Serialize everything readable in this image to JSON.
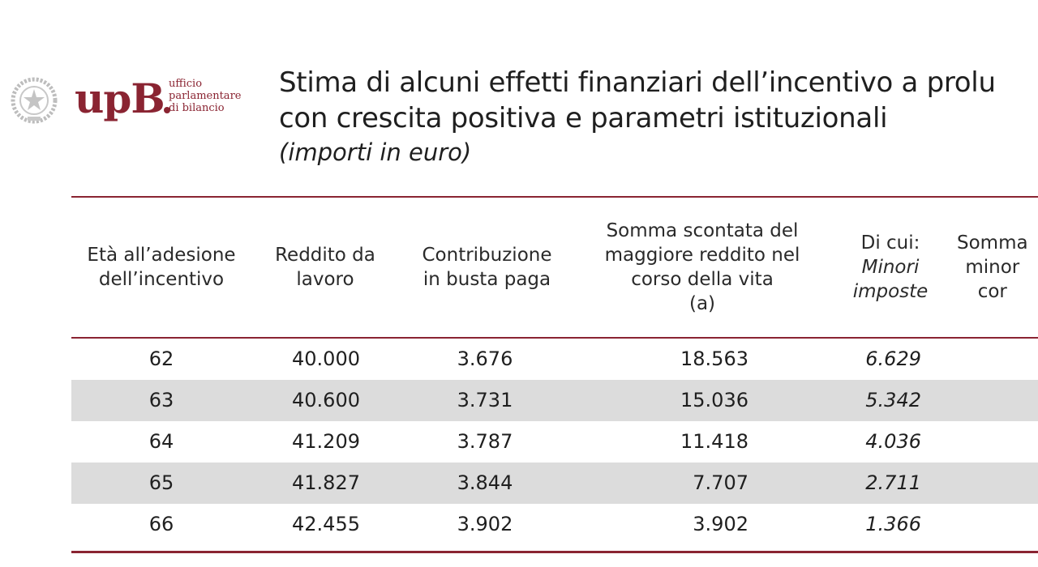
{
  "logo": {
    "word": "upB",
    "sub_lines": [
      "ufficio",
      "parlamentare",
      "di bilancio"
    ]
  },
  "title": {
    "line1": "Stima di alcuni effetti finanziari dell’incentivo a prolu",
    "line2": "con crescita positiva e parametri istituzionali",
    "subtitle": "(importi in euro)"
  },
  "table": {
    "headers": [
      "Età all’adesione\ndell’incentivo",
      "Reddito da\nlavoro",
      "Contribuzione\nin busta paga",
      "Somma scontata del\nmaggiore reddito nel\ncorso della vita\n(a)",
      "Di cui:",
      "Somma\nminor\ncor"
    ],
    "header_italic": "Minori\nimposte",
    "rows": [
      [
        "62",
        "40.000",
        "3.676",
        "18.563",
        "6.629"
      ],
      [
        "63",
        "40.600",
        "3.731",
        "15.036",
        "5.342"
      ],
      [
        "64",
        "41.209",
        "3.787",
        "11.418",
        "4.036"
      ],
      [
        "65",
        "41.827",
        "3.844",
        "7.707",
        "2.711"
      ],
      [
        "66",
        "42.455",
        "3.902",
        "3.902",
        "1.366"
      ]
    ]
  },
  "colors": {
    "accent": "#8a2432",
    "shade": "#dcdcdc"
  }
}
